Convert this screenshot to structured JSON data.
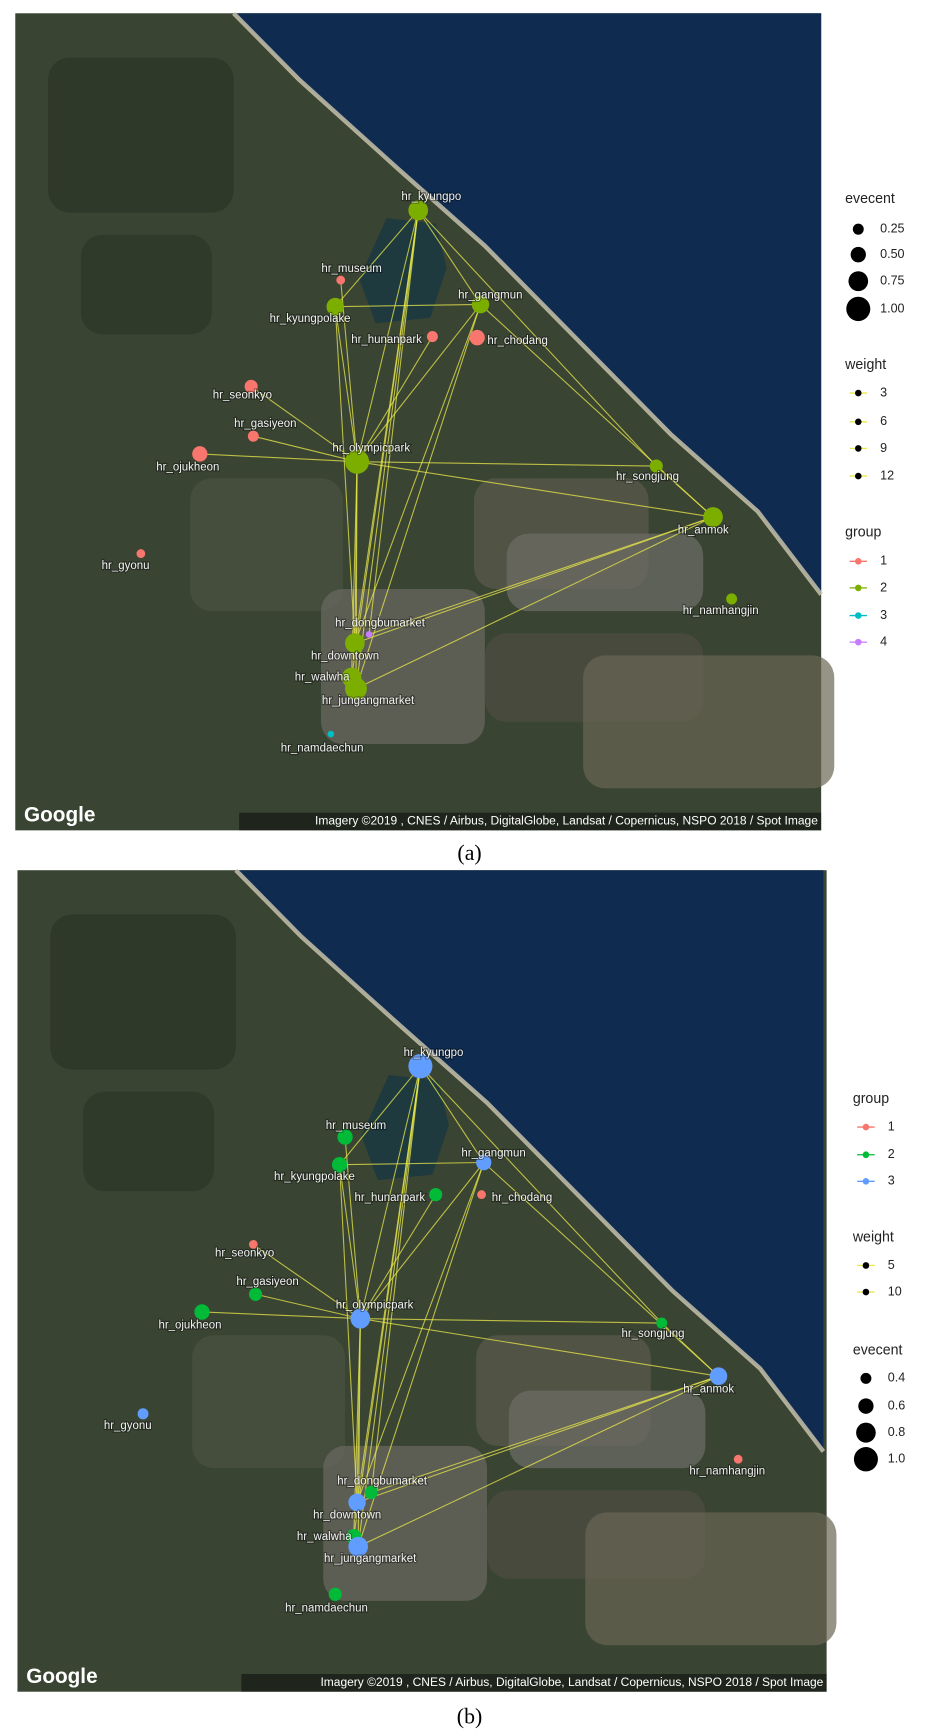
{
  "panels": [
    {
      "caption": "(a)",
      "google": "Google",
      "attribution": "Imagery ©2019 , CNES / Airbus, DigitalGlobe, Landsat / Copernicus, NSPO 2018 / Spot Image",
      "nodes": [
        {
          "label": "hr_kyungpo",
          "group": 2
        },
        {
          "label": "hr_museum",
          "group": 1
        },
        {
          "label": "hr_kyungpolake",
          "group": 2
        },
        {
          "label": "hr_gangmun",
          "group": 2
        },
        {
          "label": "hr_hunanpark",
          "group": 1
        },
        {
          "label": "hr_chodang",
          "group": 1
        },
        {
          "label": "hr_seonkyo",
          "group": 1
        },
        {
          "label": "hr_gasiyeon",
          "group": 1
        },
        {
          "label": "hr_ojukheon",
          "group": 1
        },
        {
          "label": "hr_olympicpark",
          "group": 2
        },
        {
          "label": "hr_songjung",
          "group": 2
        },
        {
          "label": "hr_anmok",
          "group": 2
        },
        {
          "label": "hr_gyonu",
          "group": 1
        },
        {
          "label": "hr_namhangjin",
          "group": 2
        },
        {
          "label": "hr_dongbumarket",
          "group": 4
        },
        {
          "label": "hr_downtown",
          "group": 2
        },
        {
          "label": "hr_walwha",
          "group": 2
        },
        {
          "label": "hr_jungangmarket",
          "group": 2
        },
        {
          "label": "hr_namdaechun",
          "group": 3
        }
      ],
      "legends": [
        {
          "title": "evecent",
          "entries": [
            "0.25",
            "0.50",
            "0.75",
            "1.00"
          ]
        },
        {
          "title": "weight",
          "entries": [
            "3",
            "6",
            "9",
            "12"
          ]
        },
        {
          "title": "group",
          "entries": [
            "1",
            "2",
            "3",
            "4"
          ],
          "colors": [
            "#f8766d",
            "#7cae00",
            "#00bfc4",
            "#c77cff"
          ]
        }
      ]
    },
    {
      "caption": "(b)",
      "google": "Google",
      "attribution": "Imagery ©2019 , CNES / Airbus, DigitalGlobe, Landsat / Copernicus, NSPO 2018 / Spot Image",
      "nodes": [
        {
          "label": "hr_kyungpo",
          "group": 3
        },
        {
          "label": "hr_museum",
          "group": 2
        },
        {
          "label": "hr_kyungpolake",
          "group": 2
        },
        {
          "label": "hr_gangmun",
          "group": 3
        },
        {
          "label": "hr_hunanpark",
          "group": 2
        },
        {
          "label": "hr_chodang",
          "group": 1
        },
        {
          "label": "hr_seonkyo",
          "group": 1
        },
        {
          "label": "hr_gasiyeon",
          "group": 2
        },
        {
          "label": "hr_ojukheon",
          "group": 2
        },
        {
          "label": "hr_olympicpark",
          "group": 3
        },
        {
          "label": "hr_songjung",
          "group": 2
        },
        {
          "label": "hr_anmok",
          "group": 3
        },
        {
          "label": "hr_gyonu",
          "group": 3
        },
        {
          "label": "hr_namhangjin",
          "group": 1
        },
        {
          "label": "hr_dongbumarket",
          "group": 2
        },
        {
          "label": "hr_downtown",
          "group": 3
        },
        {
          "label": "hr_walwha",
          "group": 2
        },
        {
          "label": "hr_jungangmarket",
          "group": 3
        },
        {
          "label": "hr_namdaechun",
          "group": 2
        }
      ],
      "legends": [
        {
          "title": "group",
          "entries": [
            "1",
            "2",
            "3"
          ],
          "colors": [
            "#f8766d",
            "#00ba38",
            "#619cff"
          ]
        },
        {
          "title": "weight",
          "entries": [
            "5",
            "10"
          ]
        },
        {
          "title": "evecent",
          "entries": [
            "0.4",
            "0.6",
            "0.8",
            "1.0"
          ]
        }
      ]
    }
  ]
}
